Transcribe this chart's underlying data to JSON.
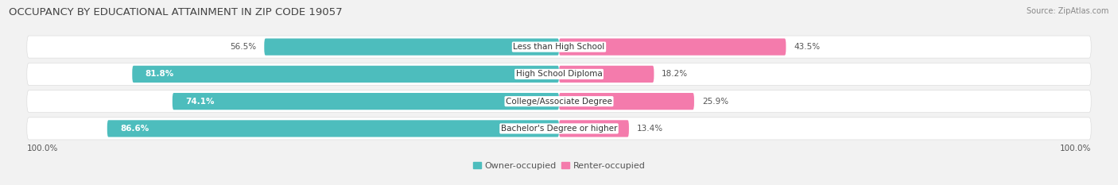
{
  "title": "OCCUPANCY BY EDUCATIONAL ATTAINMENT IN ZIP CODE 19057",
  "source": "Source: ZipAtlas.com",
  "categories": [
    "Less than High School",
    "High School Diploma",
    "College/Associate Degree",
    "Bachelor's Degree or higher"
  ],
  "owner_values": [
    56.5,
    81.8,
    74.1,
    86.6
  ],
  "renter_values": [
    43.5,
    18.2,
    25.9,
    13.4
  ],
  "owner_color": "#4DBDBD",
  "renter_color": "#F47BAC",
  "bg_color": "#f2f2f2",
  "row_bg_color": "#ffffff",
  "row_border_color": "#dddddd",
  "title_fontsize": 9.5,
  "label_fontsize": 7.5,
  "pct_fontsize": 7.5,
  "tick_fontsize": 7.5,
  "legend_fontsize": 8,
  "source_fontsize": 7,
  "x_left_label": "100.0%",
  "x_right_label": "100.0%"
}
